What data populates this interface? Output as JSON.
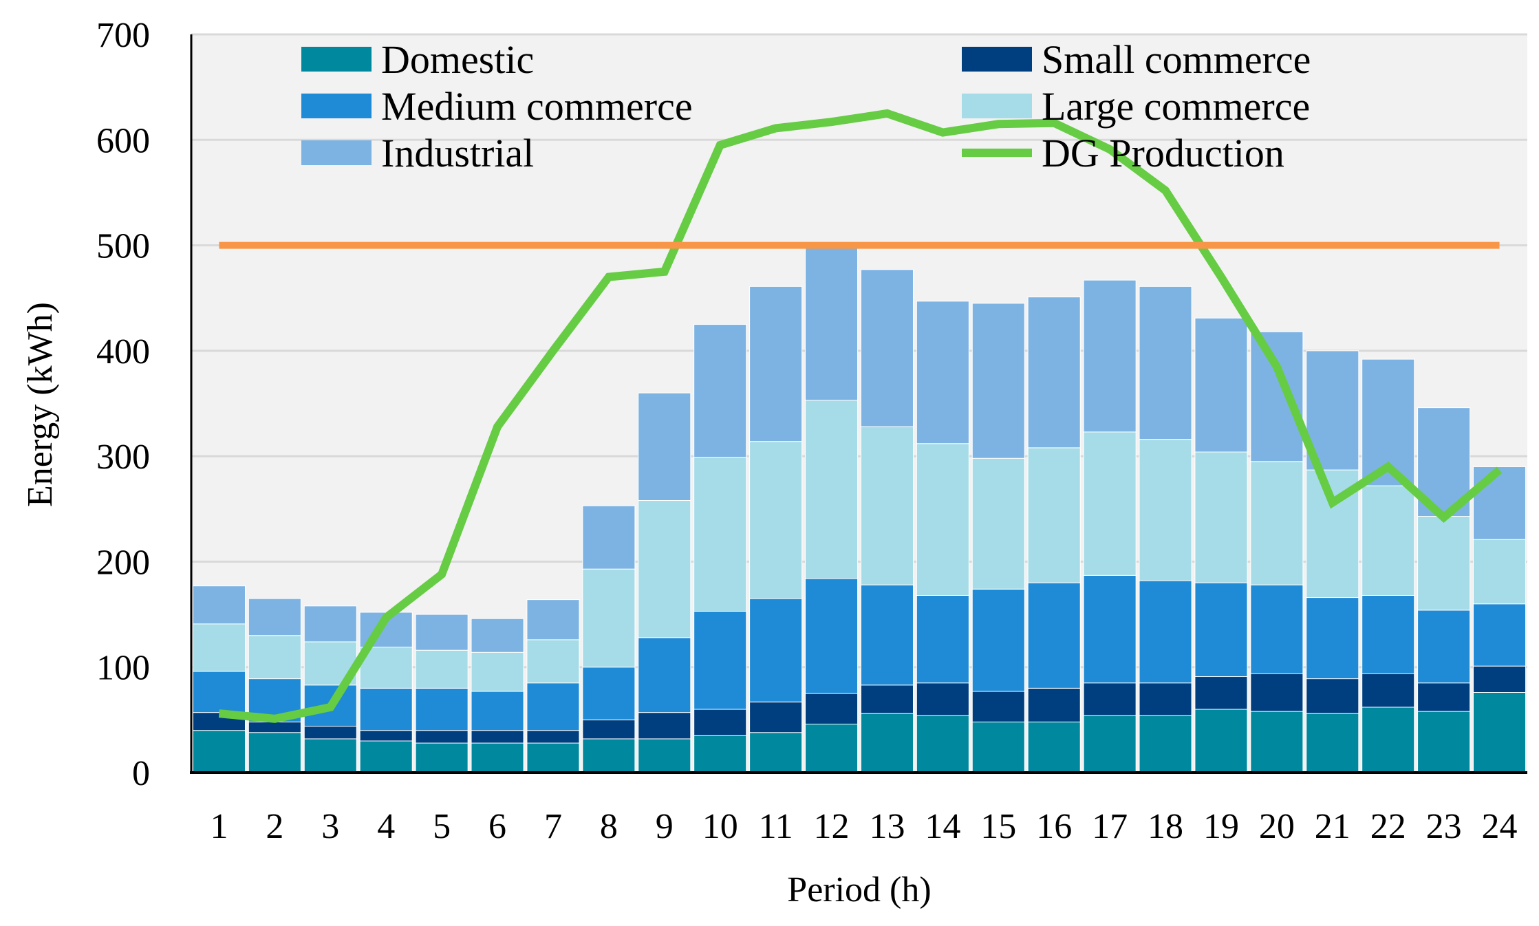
{
  "chart_data": {
    "type": "bar",
    "stacked": true,
    "title": "",
    "xlabel": "Period (h)",
    "ylabel": "Energy (kWh)",
    "ylim": [
      0,
      700
    ],
    "yticks": [
      0,
      100,
      200,
      300,
      400,
      500,
      600,
      700
    ],
    "grid": true,
    "legend_position": "top",
    "categories": [
      "1",
      "2",
      "3",
      "4",
      "5",
      "6",
      "7",
      "8",
      "9",
      "10",
      "11",
      "12",
      "13",
      "14",
      "15",
      "16",
      "17",
      "18",
      "19",
      "20",
      "21",
      "22",
      "23",
      "24"
    ],
    "series": [
      {
        "name": "Domestic",
        "color": "#00889E",
        "values": [
          40,
          38,
          32,
          30,
          28,
          28,
          28,
          32,
          32,
          35,
          38,
          46,
          56,
          54,
          48,
          48,
          54,
          54,
          60,
          58,
          56,
          62,
          58,
          76
        ]
      },
      {
        "name": "Small commerce",
        "color": "#003F7F",
        "values": [
          17,
          10,
          12,
          10,
          12,
          12,
          12,
          18,
          25,
          25,
          29,
          29,
          27,
          31,
          29,
          32,
          31,
          31,
          31,
          36,
          33,
          32,
          27,
          25
        ]
      },
      {
        "name": "Medium commerce",
        "color": "#1F8BD6",
        "values": [
          39,
          41,
          39,
          40,
          40,
          37,
          45,
          50,
          71,
          93,
          98,
          109,
          95,
          83,
          97,
          100,
          102,
          97,
          89,
          84,
          77,
          74,
          69,
          59
        ]
      },
      {
        "name": "Large commerce",
        "color": "#A5DCE8",
        "values": [
          45,
          41,
          41,
          39,
          36,
          37,
          41,
          93,
          130,
          146,
          149,
          169,
          150,
          144,
          124,
          128,
          136,
          134,
          124,
          117,
          121,
          104,
          89,
          61
        ]
      },
      {
        "name": "Industrial",
        "color": "#7DB3E3",
        "values": [
          36,
          35,
          34,
          33,
          34,
          32,
          38,
          60,
          102,
          126,
          147,
          148,
          149,
          135,
          147,
          143,
          144,
          145,
          127,
          123,
          113,
          120,
          103,
          69
        ]
      }
    ],
    "lines": [
      {
        "name": "DG Production",
        "color": "#66CC44",
        "values": [
          56,
          51,
          62,
          147,
          188,
          328,
          400,
          470,
          475,
          595,
          611,
          617,
          625,
          607,
          615,
          616,
          591,
          552,
          470,
          385,
          256,
          290,
          242,
          287
        ]
      },
      {
        "name": "",
        "color": "#F79646",
        "values": [
          500,
          500,
          500,
          500,
          500,
          500,
          500,
          500,
          500,
          500,
          500,
          500,
          500,
          500,
          500,
          500,
          500,
          500,
          500,
          500,
          500,
          500,
          500,
          500
        ]
      }
    ]
  }
}
